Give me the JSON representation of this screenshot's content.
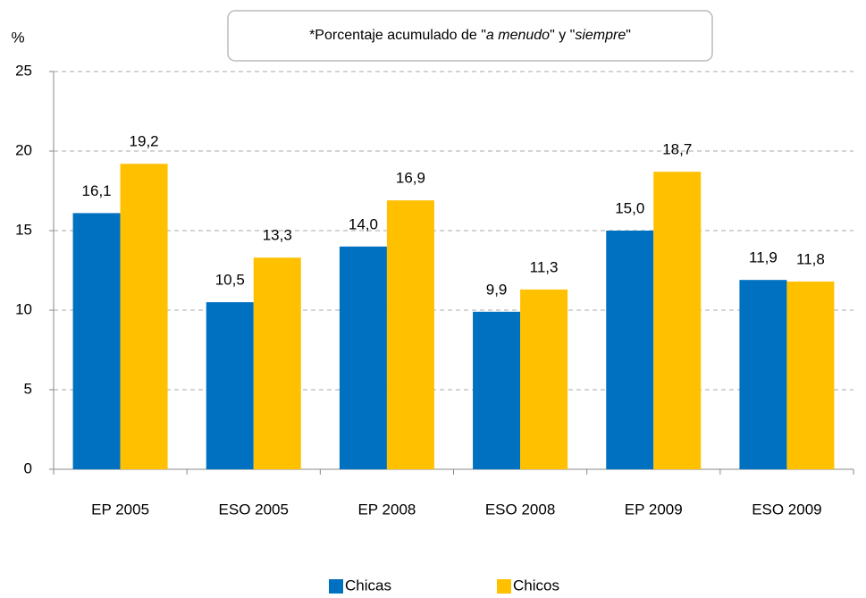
{
  "chart_data": {
    "type": "bar",
    "y_label": "%",
    "annotation": [
      {
        "text": "*Porcentaje acumulado de \"",
        "italic": false
      },
      {
        "text": "a menudo",
        "italic": true
      },
      {
        "text": "\" y \"",
        "italic": false
      },
      {
        "text": "siempre",
        "italic": true
      },
      {
        "text": "\"",
        "italic": false
      }
    ],
    "categories": [
      "EP 2005",
      "ESO 2005",
      "EP 2008",
      "ESO 2008",
      "EP 2009",
      "ESO 2009"
    ],
    "series": [
      {
        "name": "Chicas",
        "color": "#0070c0",
        "values": [
          16.1,
          10.5,
          14.0,
          9.9,
          15.0,
          11.9
        ],
        "value_labels": [
          "16,1",
          "10,5",
          "14,0",
          "9,9",
          "15,0",
          "11,9"
        ]
      },
      {
        "name": "Chicos",
        "color": "#ffc000",
        "values": [
          19.2,
          13.3,
          16.9,
          11.3,
          18.7,
          11.8
        ],
        "value_labels": [
          "19,2",
          "13,3",
          "16,9",
          "11,3",
          "18,7",
          "11,8"
        ]
      }
    ],
    "ylim": [
      0,
      25
    ],
    "yticks": [
      0,
      5,
      10,
      15,
      20,
      25
    ],
    "grid": true,
    "legend": "bottom"
  }
}
